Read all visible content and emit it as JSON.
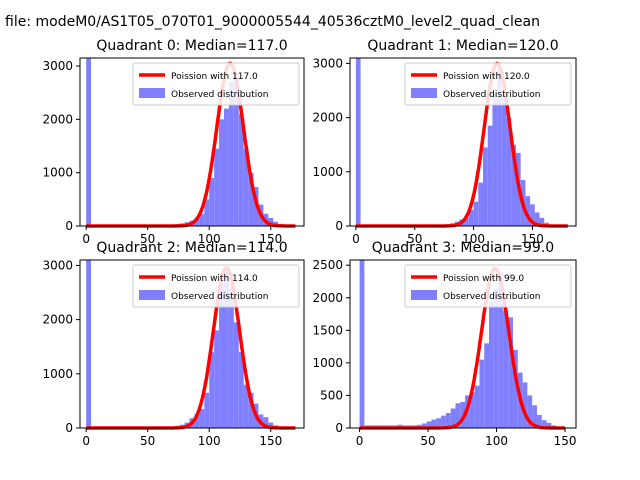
{
  "suptitle": "a file: modeM0/AS1T05_070T01_9000005544_40536cztM0_level2_quad_clean",
  "chart_data": [
    {
      "type": "bar",
      "title": "Quadrant 0: Median=117.0",
      "xlim": [
        -5,
        177
      ],
      "ylim": [
        0,
        3150
      ],
      "xticks": [
        0,
        50,
        100,
        150
      ],
      "yticks": [
        0,
        1000,
        2000,
        3000
      ],
      "grid": false,
      "legend_placement": "top-right",
      "series": [
        {
          "name": "Poission with 117.0",
          "type": "line",
          "color": "#ff0000",
          "mean": 117.0,
          "peak": 3050,
          "x_range": [
            0,
            170
          ]
        },
        {
          "name": "Observed distribution",
          "type": "histogram",
          "color": "#8080ff",
          "bin_width": 4,
          "bins": [
            [
              0,
              3150
            ],
            [
              4,
              20
            ],
            [
              8,
              20
            ],
            [
              12,
              20
            ],
            [
              16,
              20
            ],
            [
              20,
              20
            ],
            [
              24,
              20
            ],
            [
              28,
              20
            ],
            [
              32,
              20
            ],
            [
              36,
              20
            ],
            [
              40,
              20
            ],
            [
              44,
              20
            ],
            [
              48,
              20
            ],
            [
              52,
              20
            ],
            [
              56,
              20
            ],
            [
              60,
              20
            ],
            [
              64,
              20
            ],
            [
              68,
              20
            ],
            [
              72,
              40
            ],
            [
              76,
              50
            ],
            [
              80,
              70
            ],
            [
              84,
              100
            ],
            [
              88,
              150
            ],
            [
              92,
              230
            ],
            [
              96,
              500
            ],
            [
              100,
              900
            ],
            [
              104,
              1450
            ],
            [
              108,
              2000
            ],
            [
              112,
              2200
            ],
            [
              116,
              2700
            ],
            [
              120,
              2800
            ],
            [
              124,
              2100
            ],
            [
              128,
              1450
            ],
            [
              132,
              1000
            ],
            [
              136,
              730
            ],
            [
              140,
              400
            ],
            [
              144,
              230
            ],
            [
              148,
              150
            ],
            [
              152,
              80
            ],
            [
              156,
              40
            ],
            [
              160,
              20
            ],
            [
              164,
              10
            ],
            [
              168,
              5
            ]
          ]
        }
      ]
    },
    {
      "type": "bar",
      "title": "Quadrant 1: Median=120.0",
      "xlim": [
        -5,
        187
      ],
      "ylim": [
        0,
        3100
      ],
      "xticks": [
        0,
        50,
        100,
        150
      ],
      "yticks": [
        0,
        1000,
        2000,
        3000
      ],
      "grid": false,
      "legend_placement": "top-right",
      "series": [
        {
          "name": "Poission with 120.0",
          "type": "line",
          "color": "#ff0000",
          "mean": 120.0,
          "peak": 3000,
          "x_range": [
            0,
            180
          ]
        },
        {
          "name": "Observed distribution",
          "type": "histogram",
          "color": "#8080ff",
          "bin_width": 4,
          "bins": [
            [
              0,
              3100
            ],
            [
              4,
              20
            ],
            [
              8,
              20
            ],
            [
              12,
              20
            ],
            [
              16,
              20
            ],
            [
              20,
              20
            ],
            [
              24,
              20
            ],
            [
              28,
              20
            ],
            [
              32,
              20
            ],
            [
              36,
              20
            ],
            [
              40,
              20
            ],
            [
              44,
              20
            ],
            [
              48,
              20
            ],
            [
              52,
              20
            ],
            [
              56,
              20
            ],
            [
              60,
              20
            ],
            [
              64,
              20
            ],
            [
              68,
              20
            ],
            [
              72,
              20
            ],
            [
              76,
              30
            ],
            [
              80,
              50
            ],
            [
              84,
              80
            ],
            [
              88,
              120
            ],
            [
              92,
              150
            ],
            [
              96,
              300
            ],
            [
              100,
              450
            ],
            [
              104,
              800
            ],
            [
              108,
              1450
            ],
            [
              112,
              1850
            ],
            [
              116,
              2450
            ],
            [
              120,
              2900
            ],
            [
              124,
              2450
            ],
            [
              128,
              2000
            ],
            [
              132,
              1500
            ],
            [
              136,
              1350
            ],
            [
              140,
              850
            ],
            [
              144,
              550
            ],
            [
              148,
              400
            ],
            [
              152,
              250
            ],
            [
              156,
              150
            ],
            [
              160,
              60
            ],
            [
              164,
              30
            ],
            [
              168,
              20
            ],
            [
              172,
              10
            ],
            [
              176,
              5
            ]
          ]
        }
      ]
    },
    {
      "type": "bar",
      "title": "Quadrant 2: Median=114.0",
      "xlim": [
        -5,
        177
      ],
      "ylim": [
        0,
        3100
      ],
      "xticks": [
        0,
        50,
        100,
        150
      ],
      "yticks": [
        0,
        1000,
        2000,
        3000
      ],
      "grid": false,
      "legend_placement": "top-right",
      "series": [
        {
          "name": "Poission with 114.0",
          "type": "line",
          "color": "#ff0000",
          "mean": 114.0,
          "peak": 2950,
          "x_range": [
            0,
            170
          ]
        },
        {
          "name": "Observed distribution",
          "type": "histogram",
          "color": "#8080ff",
          "bin_width": 4,
          "bins": [
            [
              0,
              3100
            ],
            [
              4,
              20
            ],
            [
              8,
              20
            ],
            [
              12,
              20
            ],
            [
              16,
              20
            ],
            [
              20,
              20
            ],
            [
              24,
              20
            ],
            [
              28,
              20
            ],
            [
              32,
              20
            ],
            [
              36,
              20
            ],
            [
              40,
              20
            ],
            [
              44,
              20
            ],
            [
              48,
              20
            ],
            [
              52,
              20
            ],
            [
              56,
              20
            ],
            [
              60,
              20
            ],
            [
              64,
              20
            ],
            [
              68,
              20
            ],
            [
              72,
              40
            ],
            [
              76,
              60
            ],
            [
              80,
              100
            ],
            [
              84,
              180
            ],
            [
              88,
              250
            ],
            [
              92,
              350
            ],
            [
              96,
              650
            ],
            [
              100,
              1400
            ],
            [
              104,
              1800
            ],
            [
              108,
              2700
            ],
            [
              112,
              2900
            ],
            [
              116,
              2600
            ],
            [
              120,
              1950
            ],
            [
              124,
              1400
            ],
            [
              128,
              800
            ],
            [
              132,
              650
            ],
            [
              136,
              450
            ],
            [
              140,
              250
            ],
            [
              144,
              200
            ],
            [
              148,
              100
            ],
            [
              152,
              50
            ],
            [
              156,
              20
            ],
            [
              160,
              10
            ],
            [
              164,
              5
            ]
          ]
        }
      ]
    },
    {
      "type": "bar",
      "title": "Quadrant 3: Median=99.0",
      "xlim": [
        -7,
        158
      ],
      "ylim": [
        0,
        2580
      ],
      "xticks": [
        0,
        50,
        100,
        150
      ],
      "yticks": [
        0,
        500,
        1000,
        1500,
        2000,
        2500
      ],
      "grid": false,
      "legend_placement": "top-right",
      "series": [
        {
          "name": "Poission with 99.0",
          "type": "line",
          "color": "#ff0000",
          "mean": 99.0,
          "peak": 2450,
          "x_range": [
            0,
            150
          ]
        },
        {
          "name": "Observed distribution",
          "type": "histogram",
          "color": "#8080ff",
          "bin_width": 3.5,
          "bins": [
            [
              0,
              2580
            ],
            [
              3.5,
              40
            ],
            [
              7,
              40
            ],
            [
              10.5,
              40
            ],
            [
              14,
              40
            ],
            [
              17.5,
              40
            ],
            [
              21,
              40
            ],
            [
              24.5,
              40
            ],
            [
              28,
              50
            ],
            [
              31.5,
              40
            ],
            [
              35,
              40
            ],
            [
              38.5,
              40
            ],
            [
              42,
              50
            ],
            [
              45.5,
              70
            ],
            [
              49,
              100
            ],
            [
              52.5,
              130
            ],
            [
              56,
              150
            ],
            [
              59.5,
              190
            ],
            [
              63,
              230
            ],
            [
              66.5,
              300
            ],
            [
              70,
              380
            ],
            [
              73.5,
              400
            ],
            [
              77,
              500
            ],
            [
              80.5,
              550
            ],
            [
              84,
              650
            ],
            [
              87.5,
              1050
            ],
            [
              91,
              1300
            ],
            [
              94.5,
              1950
            ],
            [
              98,
              2150
            ],
            [
              101.5,
              2400
            ],
            [
              105,
              1800
            ],
            [
              108.5,
              1700
            ],
            [
              112,
              1200
            ],
            [
              115.5,
              850
            ],
            [
              119,
              700
            ],
            [
              122.5,
              500
            ],
            [
              126,
              350
            ],
            [
              129.5,
              200
            ],
            [
              133,
              120
            ],
            [
              136.5,
              80
            ],
            [
              140,
              40
            ],
            [
              143.5,
              20
            ],
            [
              147,
              10
            ]
          ]
        }
      ]
    }
  ]
}
